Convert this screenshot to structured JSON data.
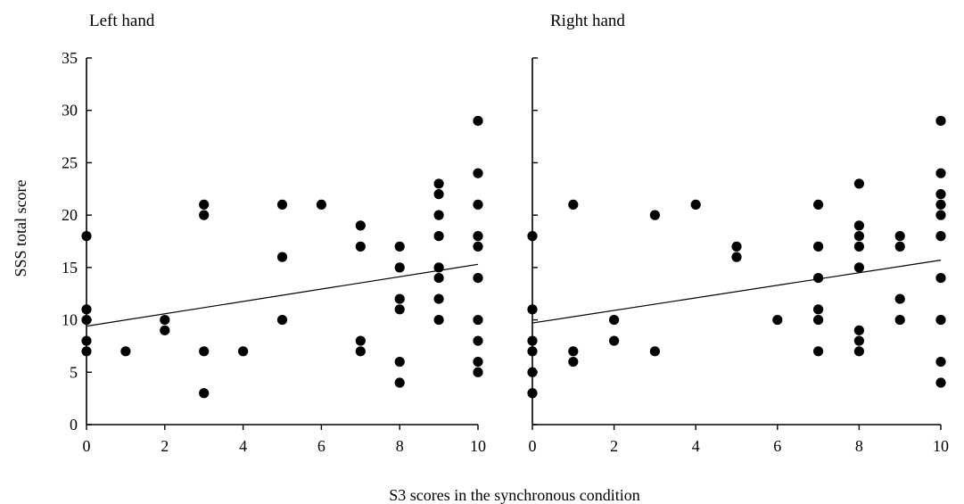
{
  "figure": {
    "xlabel": "S3 scores in the synchronous condition",
    "ylabel": "SSS total score"
  },
  "chart_data": [
    {
      "type": "scatter",
      "title": "Left hand",
      "xlabel": "S3 scores in the synchronous condition",
      "ylabel": "SSS total score",
      "xlim": [
        0,
        10
      ],
      "ylim": [
        0,
        35
      ],
      "xticks": [
        0,
        2,
        4,
        6,
        8,
        10
      ],
      "yticks": [
        0,
        5,
        10,
        15,
        20,
        25,
        30,
        35
      ],
      "grid": false,
      "points": [
        [
          0,
          18
        ],
        [
          0,
          11
        ],
        [
          0,
          10
        ],
        [
          0,
          8
        ],
        [
          0,
          7
        ],
        [
          1,
          7
        ],
        [
          2,
          10
        ],
        [
          2,
          9
        ],
        [
          3,
          21
        ],
        [
          3,
          20
        ],
        [
          3,
          7
        ],
        [
          3,
          3
        ],
        [
          4,
          7
        ],
        [
          5,
          21
        ],
        [
          5,
          16
        ],
        [
          5,
          10
        ],
        [
          6,
          21
        ],
        [
          7,
          19
        ],
        [
          7,
          17
        ],
        [
          7,
          8
        ],
        [
          7,
          7
        ],
        [
          8,
          17
        ],
        [
          8,
          15
        ],
        [
          8,
          12
        ],
        [
          8,
          11
        ],
        [
          8,
          6
        ],
        [
          8,
          4
        ],
        [
          9,
          23
        ],
        [
          9,
          22
        ],
        [
          9,
          20
        ],
        [
          9,
          18
        ],
        [
          9,
          15
        ],
        [
          9,
          14
        ],
        [
          9,
          12
        ],
        [
          9,
          10
        ],
        [
          10,
          29
        ],
        [
          10,
          24
        ],
        [
          10,
          21
        ],
        [
          10,
          18
        ],
        [
          10,
          17
        ],
        [
          10,
          14
        ],
        [
          10,
          10
        ],
        [
          10,
          8
        ],
        [
          10,
          6
        ],
        [
          10,
          5
        ]
      ],
      "trendline": {
        "x": [
          0,
          10
        ],
        "y": [
          9.4,
          15.3
        ]
      }
    },
    {
      "type": "scatter",
      "title": "Right hand",
      "xlabel": "S3 scores in the synchronous condition",
      "ylabel": "",
      "xlim": [
        0,
        10
      ],
      "ylim": [
        0,
        35
      ],
      "xticks": [
        0,
        2,
        4,
        6,
        8,
        10
      ],
      "yticks": [
        0,
        5,
        10,
        15,
        20,
        25,
        30,
        35
      ],
      "grid": false,
      "points": [
        [
          0,
          18
        ],
        [
          0,
          11
        ],
        [
          0,
          8
        ],
        [
          0,
          7
        ],
        [
          0,
          5
        ],
        [
          0,
          3
        ],
        [
          1,
          21
        ],
        [
          1,
          7
        ],
        [
          1,
          6
        ],
        [
          2,
          10
        ],
        [
          2,
          8
        ],
        [
          3,
          20
        ],
        [
          3,
          7
        ],
        [
          4,
          21
        ],
        [
          5,
          17
        ],
        [
          5,
          16
        ],
        [
          6,
          10
        ],
        [
          7,
          21
        ],
        [
          7,
          17
        ],
        [
          7,
          14
        ],
        [
          7,
          11
        ],
        [
          7,
          10
        ],
        [
          7,
          7
        ],
        [
          8,
          23
        ],
        [
          8,
          19
        ],
        [
          8,
          18
        ],
        [
          8,
          17
        ],
        [
          8,
          15
        ],
        [
          8,
          9
        ],
        [
          8,
          8
        ],
        [
          8,
          7
        ],
        [
          9,
          18
        ],
        [
          9,
          17
        ],
        [
          9,
          12
        ],
        [
          9,
          10
        ],
        [
          10,
          29
        ],
        [
          10,
          24
        ],
        [
          10,
          22
        ],
        [
          10,
          21
        ],
        [
          10,
          20
        ],
        [
          10,
          18
        ],
        [
          10,
          14
        ],
        [
          10,
          10
        ],
        [
          10,
          6
        ],
        [
          10,
          4
        ]
      ],
      "trendline": {
        "x": [
          0,
          10
        ],
        "y": [
          9.7,
          15.7
        ]
      }
    }
  ]
}
